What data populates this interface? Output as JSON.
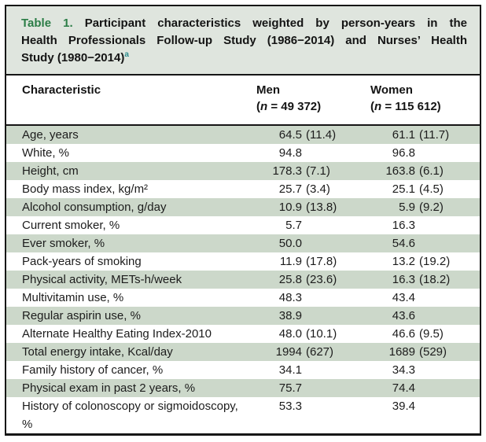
{
  "colors": {
    "table_label_green": "#2b7d46",
    "footnote_teal": "#2c8c8d",
    "row_shade_green": "#ccd8ca",
    "caption_background": "#dfe5de",
    "border_black": "#161616"
  },
  "title": {
    "line1_label": "Table 1.",
    "line1_text": " Participant characteristics weighted by person-years in the",
    "line2_text": "Health Professionals Follow-up Study (1986−2014) and Nurses’ Health",
    "line3_text": "Study (1980−2014)",
    "footnote_marker": "a"
  },
  "header": {
    "characteristic": "Characteristic",
    "men": {
      "label": "Men",
      "paren_open": "(",
      "n_symbol": "n",
      "n_rest": " = 49 372)"
    },
    "women": {
      "label": "Women",
      "paren_open": "(",
      "n_symbol": "n",
      "n_rest": " = 115 612)"
    }
  },
  "rows": [
    {
      "label": "Age, years",
      "men": "64.5",
      "men_sd": "(11.4)",
      "women": "61.1",
      "women_sd": "(11.7)",
      "shaded": true
    },
    {
      "label": "White, %",
      "men": "94.8",
      "men_sd": "",
      "women": "96.8",
      "women_sd": "",
      "shaded": false
    },
    {
      "label": "Height, cm",
      "men": "178.3",
      "men_sd": "(7.1)",
      "women": "163.8",
      "women_sd": "(6.1)",
      "shaded": true
    },
    {
      "label": "Body mass index, kg/m²",
      "men": "25.7",
      "men_sd": "(3.4)",
      "women": "25.1",
      "women_sd": "(4.5)",
      "shaded": false
    },
    {
      "label": "Alcohol consumption, g/day",
      "men": "10.9",
      "men_sd": "(13.8)",
      "women": "5.9",
      "women_sd": "(9.2)",
      "shaded": true
    },
    {
      "label": "Current smoker, %",
      "men": "5.7",
      "men_sd": "",
      "women": "16.3",
      "women_sd": "",
      "shaded": false
    },
    {
      "label": "Ever smoker, %",
      "men": "50.0",
      "men_sd": "",
      "women": "54.6",
      "women_sd": "",
      "shaded": true
    },
    {
      "label": "Pack-years of smoking",
      "men": "11.9",
      "men_sd": "(17.8)",
      "women": "13.2",
      "women_sd": "(19.2)",
      "shaded": false
    },
    {
      "label": "Physical activity, METs-h/week",
      "men": "25.8",
      "men_sd": "(23.6)",
      "women": "16.3",
      "women_sd": "(18.2)",
      "shaded": true
    },
    {
      "label": "Multivitamin use, %",
      "men": "48.3",
      "men_sd": "",
      "women": "43.4",
      "women_sd": "",
      "shaded": false
    },
    {
      "label": "Regular aspirin use, %",
      "men": "38.9",
      "men_sd": "",
      "women": "43.6",
      "women_sd": "",
      "shaded": true
    },
    {
      "label": "Alternate Healthy Eating Index-2010",
      "men": "48.0",
      "men_sd": "(10.1)",
      "women": "46.6",
      "women_sd": "(9.5)",
      "shaded": false
    },
    {
      "label": "Total energy intake, Kcal/day",
      "men": "1994",
      "men_sd": "(627)",
      "women": "1689",
      "women_sd": "(529)",
      "shaded": true
    },
    {
      "label": "Family history of cancer, %",
      "men": "34.1",
      "men_sd": "",
      "women": "34.3",
      "women_sd": "",
      "shaded": false
    },
    {
      "label": "Physical exam in past 2 years, %",
      "men": "75.7",
      "men_sd": "",
      "women": "74.4",
      "women_sd": "",
      "shaded": true
    },
    {
      "label": "History of colonoscopy or sigmoidoscopy, %",
      "men": "53.3",
      "men_sd": "",
      "women": "39.4",
      "women_sd": "",
      "shaded": false
    }
  ]
}
